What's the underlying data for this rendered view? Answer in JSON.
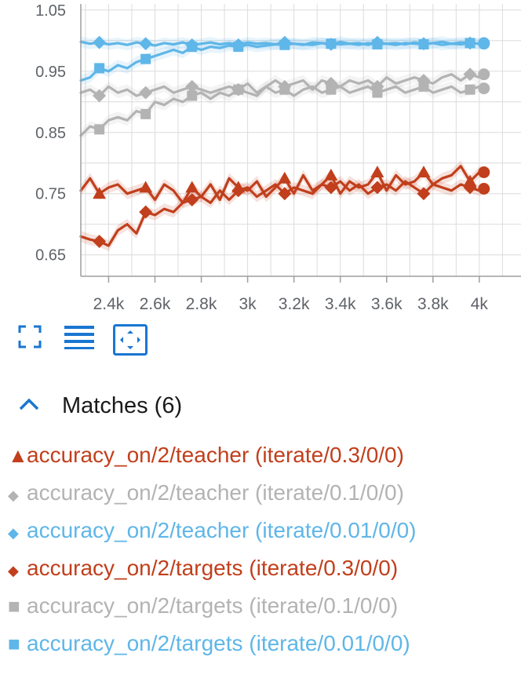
{
  "chart_data": {
    "type": "line",
    "x": [
      2280,
      2320,
      2360,
      2400,
      2440,
      2480,
      2520,
      2560,
      2600,
      2640,
      2680,
      2720,
      2760,
      2800,
      2840,
      2880,
      2920,
      2960,
      3000,
      3040,
      3080,
      3120,
      3160,
      3200,
      3240,
      3280,
      3320,
      3360,
      3400,
      3440,
      3480,
      3520,
      3560,
      3600,
      3640,
      3680,
      3720,
      3760,
      3800,
      3840,
      3880,
      3920,
      3960,
      4000,
      4020
    ],
    "xticks": [
      "2.4k",
      "2.6k",
      "2.8k",
      "3k",
      "3.2k",
      "3.4k",
      "3.6k",
      "3.8k",
      "4k"
    ],
    "xtick_values": [
      2400,
      2600,
      2800,
      3000,
      3200,
      3400,
      3600,
      3800,
      4000
    ],
    "yticks": [
      "1.05",
      "0.95",
      "0.85",
      "0.75",
      "0.65"
    ],
    "ytick_values": [
      1.05,
      0.95,
      0.85,
      0.75,
      0.65
    ],
    "xlim": [
      2280,
      4180
    ],
    "ylim": [
      0.615,
      1.06
    ],
    "grid": true,
    "series": [
      {
        "name": "accuracy_on/2/teacher (iterate/0.3/0/0)",
        "color": "#c13f1c",
        "marker": "triangle",
        "values": [
          0.755,
          0.775,
          0.75,
          0.76,
          0.765,
          0.75,
          0.755,
          0.76,
          0.74,
          0.765,
          0.755,
          0.735,
          0.76,
          0.745,
          0.765,
          0.74,
          0.775,
          0.76,
          0.755,
          0.77,
          0.745,
          0.76,
          0.775,
          0.75,
          0.78,
          0.755,
          0.765,
          0.78,
          0.75,
          0.77,
          0.76,
          0.765,
          0.785,
          0.755,
          0.78,
          0.765,
          0.77,
          0.785,
          0.765,
          0.775,
          0.78,
          0.795,
          0.77,
          0.785,
          0.785
        ]
      },
      {
        "name": "accuracy_on/2/teacher (iterate/0.1/0/0)",
        "color": "#b3b3b3",
        "marker": "diamond",
        "values": [
          0.915,
          0.92,
          0.91,
          0.925,
          0.915,
          0.92,
          0.91,
          0.915,
          0.92,
          0.925,
          0.915,
          0.92,
          0.925,
          0.92,
          0.915,
          0.92,
          0.925,
          0.92,
          0.93,
          0.915,
          0.925,
          0.935,
          0.925,
          0.93,
          0.935,
          0.92,
          0.935,
          0.93,
          0.925,
          0.935,
          0.93,
          0.935,
          0.925,
          0.94,
          0.93,
          0.935,
          0.94,
          0.935,
          0.93,
          0.94,
          0.945,
          0.935,
          0.945,
          0.94,
          0.945
        ]
      },
      {
        "name": "accuracy_on/2/teacher (iterate/0.01/0/0)",
        "color": "#5fb6e8",
        "marker": "diamond",
        "values": [
          0.998,
          0.995,
          0.997,
          0.994,
          0.996,
          0.993,
          0.997,
          0.995,
          0.992,
          0.996,
          0.994,
          0.997,
          0.993,
          0.995,
          0.997,
          0.994,
          0.996,
          0.993,
          0.997,
          0.995,
          0.996,
          0.994,
          0.997,
          0.995,
          0.993,
          0.997,
          0.996,
          0.994,
          0.998,
          0.995,
          0.996,
          0.993,
          0.997,
          0.995,
          0.996,
          0.994,
          0.997,
          0.995,
          0.996,
          0.998,
          0.995,
          0.997,
          0.996,
          0.995,
          0.996
        ]
      },
      {
        "name": "accuracy_on/2/targets (iterate/0.3/0/0)",
        "color": "#c13f1c",
        "marker": "diamond",
        "values": [
          0.68,
          0.675,
          0.672,
          0.665,
          0.69,
          0.7,
          0.685,
          0.72,
          0.715,
          0.725,
          0.72,
          0.735,
          0.74,
          0.745,
          0.735,
          0.755,
          0.74,
          0.755,
          0.76,
          0.745,
          0.755,
          0.765,
          0.75,
          0.76,
          0.755,
          0.75,
          0.765,
          0.76,
          0.77,
          0.755,
          0.765,
          0.75,
          0.76,
          0.765,
          0.755,
          0.77,
          0.76,
          0.75,
          0.765,
          0.76,
          0.755,
          0.765,
          0.76,
          0.755,
          0.758
        ]
      },
      {
        "name": "accuracy_on/2/targets (iterate/0.1/0/0)",
        "color": "#b3b3b3",
        "marker": "square",
        "values": [
          0.845,
          0.86,
          0.855,
          0.87,
          0.875,
          0.87,
          0.885,
          0.88,
          0.9,
          0.895,
          0.905,
          0.9,
          0.91,
          0.915,
          0.905,
          0.915,
          0.91,
          0.92,
          0.915,
          0.91,
          0.925,
          0.915,
          0.92,
          0.91,
          0.92,
          0.925,
          0.915,
          0.92,
          0.925,
          0.915,
          0.92,
          0.925,
          0.915,
          0.92,
          0.925,
          0.915,
          0.92,
          0.925,
          0.915,
          0.92,
          0.925,
          0.915,
          0.92,
          0.925,
          0.922
        ]
      },
      {
        "name": "accuracy_on/2/targets (iterate/0.01/0/0)",
        "color": "#5fb6e8",
        "marker": "square",
        "values": [
          0.935,
          0.94,
          0.955,
          0.95,
          0.96,
          0.955,
          0.965,
          0.97,
          0.975,
          0.98,
          0.985,
          0.98,
          0.99,
          0.985,
          0.99,
          0.988,
          0.992,
          0.99,
          0.993,
          0.99,
          0.992,
          0.994,
          0.993,
          0.995,
          0.994,
          0.993,
          0.996,
          0.995,
          0.994,
          0.995,
          0.993,
          0.996,
          0.994,
          0.995,
          0.993,
          0.996,
          0.995,
          0.994,
          0.996,
          0.993,
          0.995,
          0.994,
          0.996,
          0.995,
          0.995
        ]
      }
    ]
  },
  "toolbar": {
    "items": [
      {
        "icon": "fullscreen-icon"
      },
      {
        "icon": "list-icon"
      },
      {
        "icon": "fit-domain-icon"
      }
    ],
    "accent": "#1976d2"
  },
  "matches": {
    "title": "Matches (6)",
    "icon": "chevron-up-icon",
    "runs": [
      {
        "marker": "▲",
        "shape": "triangle",
        "label": "accuracy_on/2/teacher (iterate/0.3/0/0)",
        "color": "#c13f1c"
      },
      {
        "marker": "◆",
        "shape": "diamond",
        "label": "accuracy_on/2/teacher (iterate/0.1/0/0)",
        "color": "#b3b3b3"
      },
      {
        "marker": "◆",
        "shape": "diamond",
        "label": "accuracy_on/2/teacher (iterate/0.01/0/0)",
        "color": "#5fb6e8"
      },
      {
        "marker": "◆",
        "shape": "diamond",
        "label": "accuracy_on/2/targets (iterate/0.3/0/0)",
        "color": "#c13f1c"
      },
      {
        "marker": "■",
        "shape": "square",
        "label": "accuracy_on/2/targets (iterate/0.1/0/0)",
        "color": "#b3b3b3"
      },
      {
        "marker": "■",
        "shape": "square",
        "label": "accuracy_on/2/targets (iterate/0.01/0/0)",
        "color": "#5fb6e8"
      }
    ]
  }
}
